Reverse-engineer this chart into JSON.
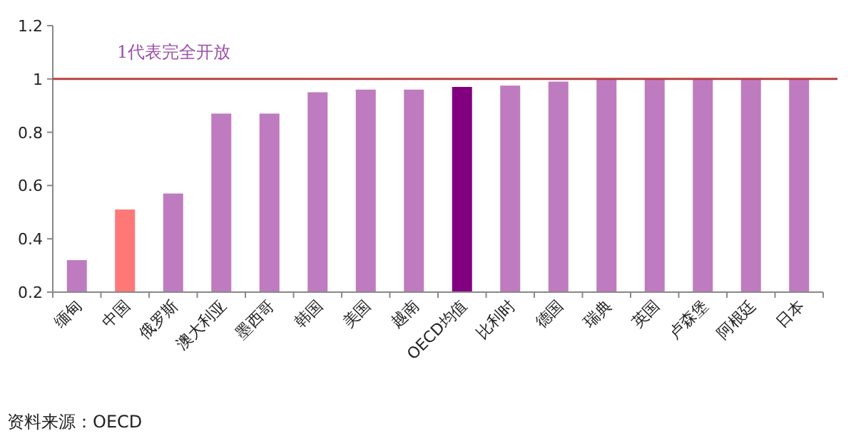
{
  "chart_data": {
    "type": "bar",
    "categories": [
      "缅甸",
      "中国",
      "俄罗斯",
      "澳大利亚",
      "墨西哥",
      "韩国",
      "美国",
      "越南",
      "OECD均值",
      "比利时",
      "德国",
      "瑞典",
      "英国",
      "卢森堡",
      "阿根廷",
      "日本"
    ],
    "values": [
      0.32,
      0.51,
      0.57,
      0.87,
      0.87,
      0.95,
      0.96,
      0.96,
      0.97,
      0.975,
      0.99,
      1,
      1,
      1,
      1,
      1
    ],
    "colors": [
      "#bf7bbf",
      "#ff7878",
      "#bf7bbf",
      "#bf7bbf",
      "#bf7bbf",
      "#bf7bbf",
      "#bf7bbf",
      "#bf7bbf",
      "#800080",
      "#bf7bbf",
      "#bf7bbf",
      "#bf7bbf",
      "#bf7bbf",
      "#bf7bbf",
      "#bf7bbf",
      "#bf7bbf"
    ],
    "ylim": [
      0.2,
      1.2
    ],
    "yticks": [
      0.2,
      0.4,
      0.6,
      0.8,
      1,
      1.2
    ],
    "ref_lines": [
      {
        "axis": "y",
        "value": 1,
        "label": "1代表完全开放",
        "color": "#b84040"
      }
    ],
    "annotations": [
      "资料来源：OECD"
    ],
    "grid": false
  }
}
